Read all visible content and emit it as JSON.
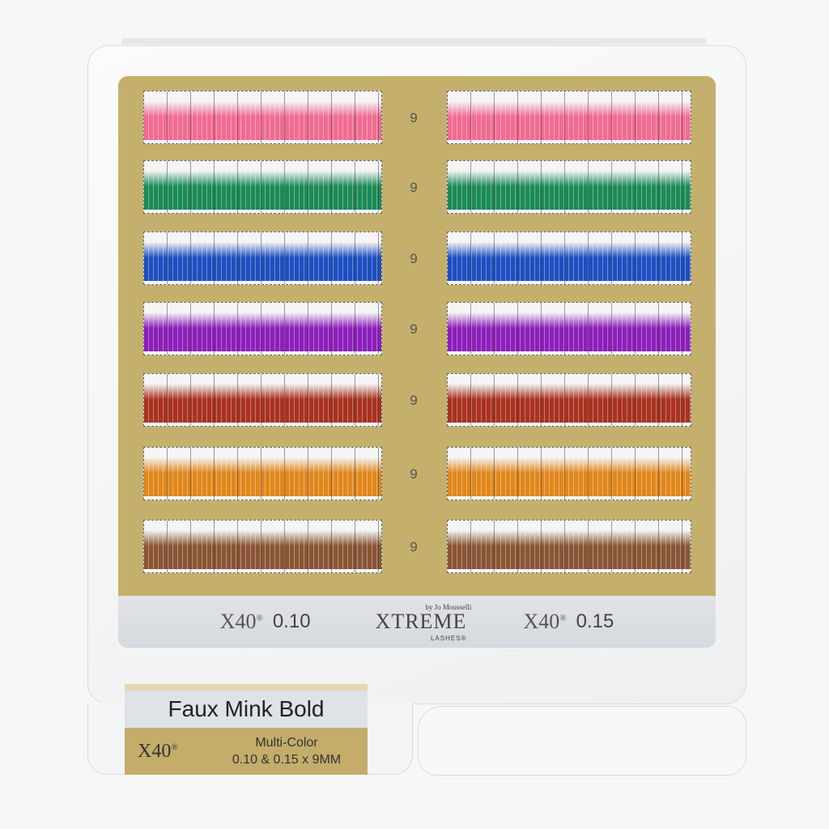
{
  "product": {
    "name": "Faux Mink Bold",
    "description_line1": "Multi-Color",
    "description_line2": "0.10 & 0.15 x 9MM"
  },
  "logos": {
    "x40": "X40",
    "registered": "®",
    "brand": "XTREME",
    "brand_by": "by Jo Mousselli",
    "brand_sub": "LASHES®"
  },
  "tray": {
    "left_thickness": "0.10",
    "right_thickness": "0.15",
    "rows": [
      {
        "length": "9",
        "color": "#f06b92"
      },
      {
        "length": "9",
        "color": "#1c8a58"
      },
      {
        "length": "9",
        "color": "#1d4fc0"
      },
      {
        "length": "9",
        "color": "#8c1fba"
      },
      {
        "length": "9",
        "color": "#a8321f"
      },
      {
        "length": "9",
        "color": "#e0871c"
      },
      {
        "length": "9",
        "color": "#8a5535"
      }
    ]
  },
  "colors": {
    "card_gold": "#c4b06c"
  }
}
